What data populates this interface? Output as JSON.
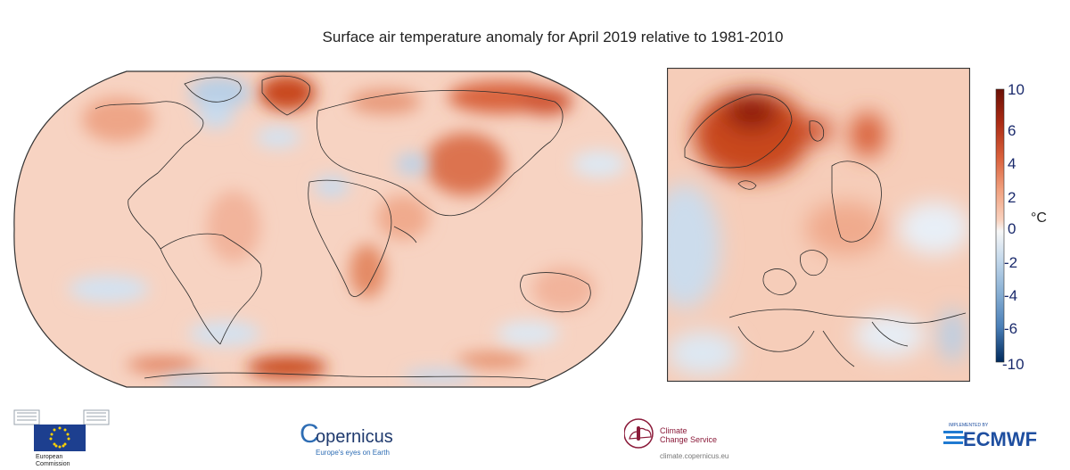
{
  "title": "Surface air temperature anomaly for April 2019 relative to 1981-2010",
  "colorbar": {
    "unit": "°C",
    "ticks": [
      "10",
      "6",
      "4",
      "2",
      "0",
      "-2",
      "-4",
      "-6",
      "-10"
    ],
    "colors": [
      "#002a5c",
      "#1d4f8f",
      "#4a7fb8",
      "#86aed3",
      "#c6daec",
      "#f7f7f7",
      "#f9d2bf",
      "#f1a17f",
      "#d9603b",
      "#aa2a13",
      "#6b0f05"
    ]
  },
  "logos": {
    "ec": {
      "line1": "European",
      "line2": "Commission"
    },
    "copernicus": {
      "name": "opernicus",
      "initial": "C",
      "tagline": "Europe's eyes on Earth"
    },
    "c3s": {
      "line1": "Climate",
      "line2": "Change Service",
      "url": "climate.copernicus.eu"
    },
    "ecmwf": {
      "small": "IMPLEMENTED BY",
      "name": "ECMWF"
    }
  }
}
